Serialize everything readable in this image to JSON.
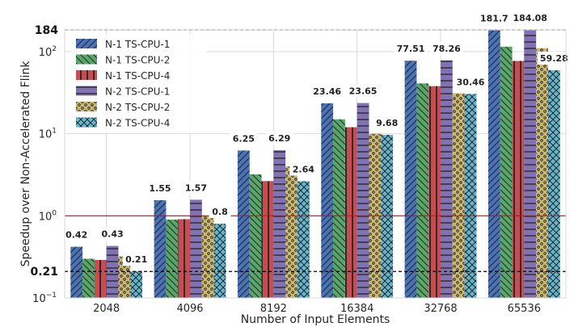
{
  "chart_data": {
    "type": "bar",
    "title": "",
    "xlabel": "Number of Input Elements",
    "ylabel": "Speedup over Non-Accelerated Flink",
    "yscale": "log",
    "ylim": [
      0.1,
      184
    ],
    "categories": [
      "2048",
      "4096",
      "8192",
      "16384",
      "32768",
      "65536"
    ],
    "series": [
      {
        "name": "N-1 TS-CPU-1",
        "color": "#4c72b0",
        "hatch": "diag-forward",
        "values": [
          0.42,
          1.55,
          6.25,
          23.46,
          77.51,
          181.7
        ]
      },
      {
        "name": "N-1 TS-CPU-2",
        "color": "#55a868",
        "hatch": "diag-back",
        "values": [
          0.3,
          0.9,
          3.2,
          15,
          41,
          115
        ]
      },
      {
        "name": "N-1 TS-CPU-4",
        "color": "#c44e52",
        "hatch": "vertical",
        "values": [
          0.29,
          0.91,
          2.65,
          12,
          38,
          77
        ]
      },
      {
        "name": "N-2 TS-CPU-1",
        "color": "#8172b2",
        "hatch": "horizontal",
        "values": [
          0.43,
          1.57,
          6.29,
          23.65,
          78.26,
          184.08
        ]
      },
      {
        "name": "N-2 TS-CPU-2",
        "color": "#ccb974",
        "hatch": "dots",
        "values": [
          0.32,
          1.0,
          4.0,
          10,
          31,
          110
        ]
      },
      {
        "name": "N-2 TS-CPU-4",
        "color": "#64b5cd",
        "hatch": "cross",
        "values": [
          0.21,
          0.8,
          2.64,
          9.68,
          30.46,
          59.28
        ]
      }
    ],
    "value_labels": [
      {
        "series": 0,
        "category": 0,
        "text": "0.42"
      },
      {
        "series": 3,
        "category": 0,
        "text": "0.43"
      },
      {
        "series": 5,
        "category": 0,
        "text": "0.21"
      },
      {
        "series": 0,
        "category": 1,
        "text": "1.55"
      },
      {
        "series": 3,
        "category": 1,
        "text": "1.57"
      },
      {
        "series": 5,
        "category": 1,
        "text": "0.8"
      },
      {
        "series": 0,
        "category": 2,
        "text": "6.25"
      },
      {
        "series": 3,
        "category": 2,
        "text": "6.29"
      },
      {
        "series": 5,
        "category": 2,
        "text": "2.64"
      },
      {
        "series": 0,
        "category": 3,
        "text": "23.46"
      },
      {
        "series": 3,
        "category": 3,
        "text": "23.65"
      },
      {
        "series": 5,
        "category": 3,
        "text": "9.68"
      },
      {
        "series": 0,
        "category": 4,
        "text": "77.51"
      },
      {
        "series": 3,
        "category": 4,
        "text": "78.26"
      },
      {
        "series": 5,
        "category": 4,
        "text": "30.46"
      },
      {
        "series": 0,
        "category": 5,
        "text": "181.7"
      },
      {
        "series": 3,
        "category": 5,
        "text": "184.08"
      },
      {
        "series": 5,
        "category": 5,
        "text": "59.28"
      }
    ],
    "reference_lines": [
      {
        "value": 184,
        "label": "184",
        "style": "dashed",
        "color": "#000000"
      },
      {
        "value": 0.21,
        "label": "0.21",
        "style": "dashed",
        "color": "#000000"
      },
      {
        "value": 1,
        "label": "",
        "style": "solid",
        "color": "#e8000b"
      }
    ],
    "y_ticks": [
      {
        "value": 0.1,
        "label": "10",
        "exp": "−1"
      },
      {
        "value": 1,
        "label": "10",
        "exp": "0"
      },
      {
        "value": 10,
        "label": "10",
        "exp": "1"
      },
      {
        "value": 100,
        "label": "10",
        "exp": "2"
      }
    ],
    "grid": true,
    "legend_position": "top-left"
  }
}
